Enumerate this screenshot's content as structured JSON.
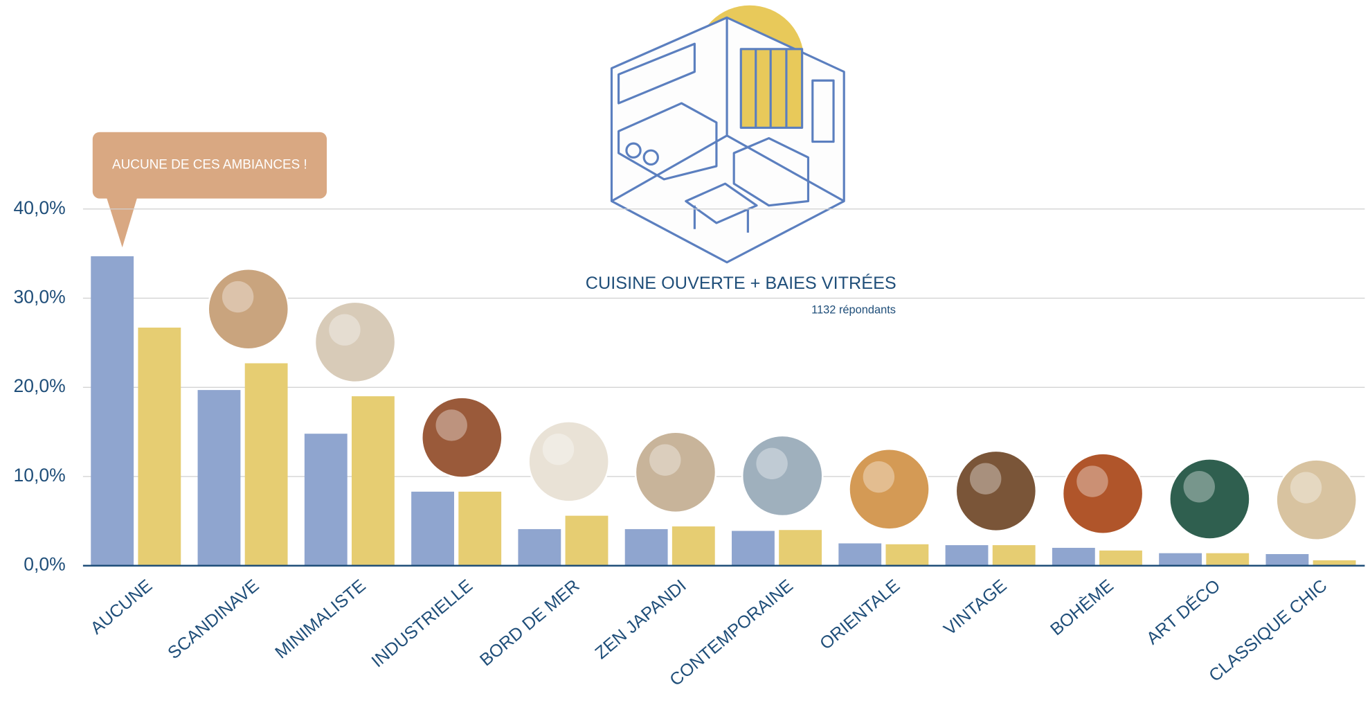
{
  "chart_data": {
    "type": "bar",
    "title": "CUISINE OUVERTE + BAIES VITRÉES",
    "subtitle": "1132 répondants",
    "annotation": "AUCUNE DE CES AMBIANCES !",
    "categories": [
      "AUCUNE",
      "SCANDINAVE",
      "MINIMALISTE",
      "INDUSTRIELLE",
      "BORD DE MER",
      "ZEN JAPANDI",
      "CONTEMPORAINE",
      "ORIENTALE",
      "VINTAGE",
      "BOHÈME",
      "ART DÉCO",
      "CLASSIQUE CHIC"
    ],
    "series": [
      {
        "color": "#8fa5cf",
        "values": [
          34.7,
          19.7,
          14.8,
          8.3,
          4.1,
          4.1,
          3.9,
          2.5,
          2.3,
          2.0,
          1.4,
          1.3
        ]
      },
      {
        "color": "#e6cd72",
        "values": [
          26.7,
          22.7,
          19.0,
          8.3,
          5.6,
          4.4,
          4.0,
          2.4,
          2.3,
          1.7,
          1.4,
          0.6
        ]
      }
    ],
    "ylim": [
      0,
      40
    ],
    "yticks": [
      {
        "value": 0,
        "label": "0,0%"
      },
      {
        "value": 10,
        "label": "10,0%"
      },
      {
        "value": 20,
        "label": "20,0%"
      },
      {
        "value": 30,
        "label": "30,0%"
      },
      {
        "value": 40,
        "label": "40,0%"
      }
    ],
    "grid": true
  }
}
